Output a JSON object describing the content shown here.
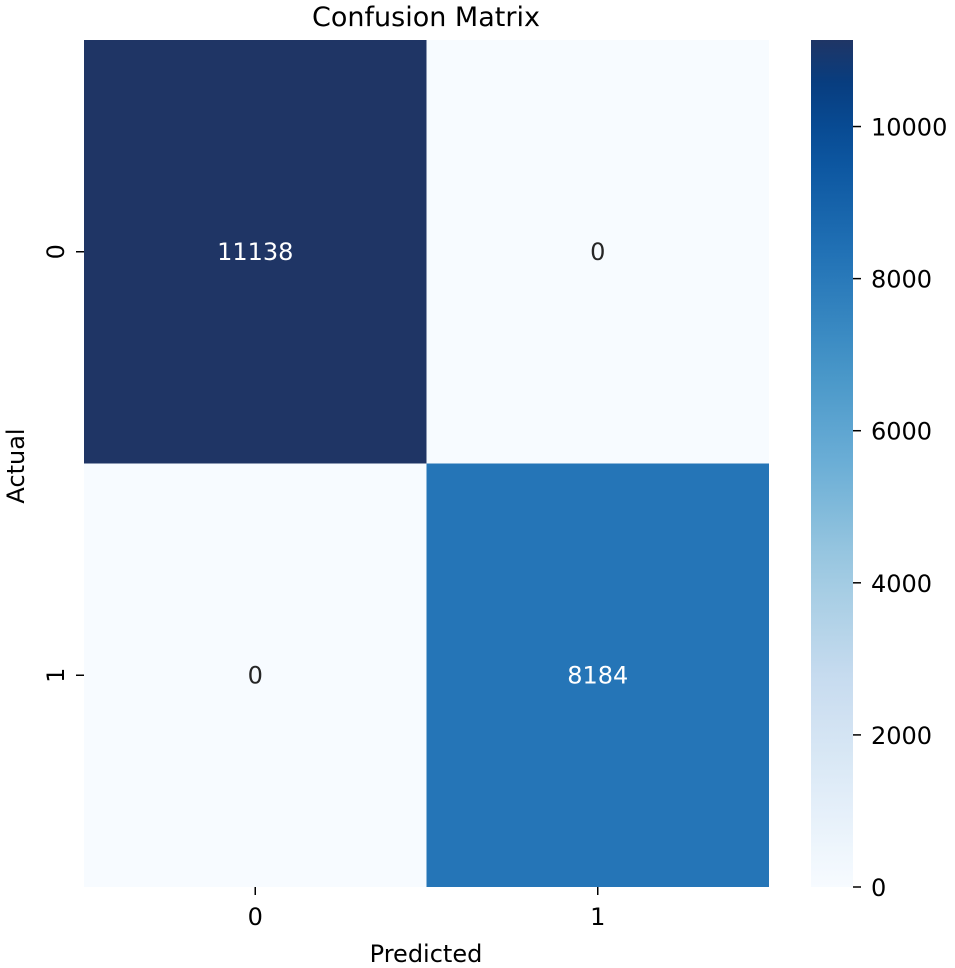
{
  "chart_data": {
    "type": "heatmap",
    "title": "Confusion Matrix",
    "xlabel": "Predicted",
    "ylabel": "Actual",
    "x_categories": [
      "0",
      "1"
    ],
    "y_categories": [
      "0",
      "1"
    ],
    "values": [
      [
        11138,
        0
      ],
      [
        0,
        8184
      ]
    ],
    "colormap": "Blues",
    "colorbar": {
      "range": [
        0,
        11138
      ],
      "ticks": [
        0,
        2000,
        4000,
        6000,
        8000,
        10000
      ],
      "tick_labels": [
        "0",
        "2000",
        "4000",
        "6000",
        "8000",
        "10000"
      ],
      "colors": [
        "#f7fbff",
        "#deebf7",
        "#c6dbef",
        "#9ecae1",
        "#6baed6",
        "#4292c6",
        "#2171b5",
        "#08519c",
        "#08306b"
      ]
    },
    "cell_label_dark_color": "#262626",
    "cell_label_light_color": "#ffffff",
    "max_cell_color": "#1f3565",
    "grid": false
  }
}
